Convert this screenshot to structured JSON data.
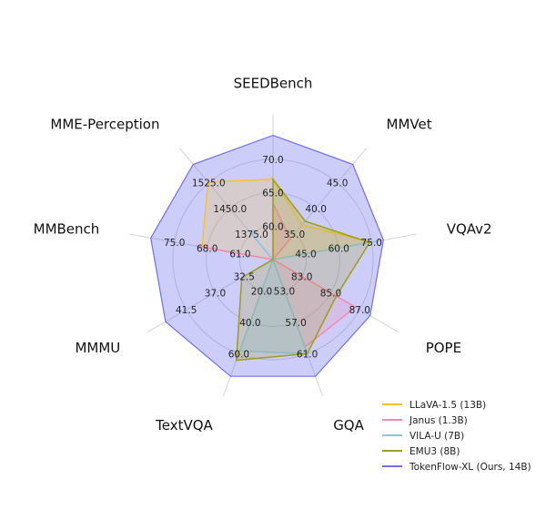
{
  "chart_data": {
    "type": "radar",
    "axes": [
      {
        "label": "SEEDBench",
        "ticks": [
          "60.0",
          "65.0",
          "70.0"
        ],
        "tick_r": [
          0.333,
          0.667,
          1.0
        ]
      },
      {
        "label": "MMVet",
        "ticks": [
          "35.0",
          "40.0",
          "45.0"
        ],
        "tick_r": [
          0.333,
          0.667,
          1.0
        ]
      },
      {
        "label": "VQAv2",
        "ticks": [
          "45.0",
          "60.0",
          "75.0"
        ],
        "tick_r": [
          0.333,
          0.667,
          1.0
        ]
      },
      {
        "label": "POPE",
        "ticks": [
          "83.0",
          "85.0",
          "87.0"
        ],
        "tick_r": [
          0.333,
          0.667,
          1.0
        ]
      },
      {
        "label": "GQA",
        "ticks": [
          "53.0",
          "57.0",
          "61.0"
        ],
        "tick_r": [
          0.333,
          0.667,
          1.0
        ]
      },
      {
        "label": "TextVQA",
        "ticks": [
          "20.0",
          "40.0",
          "60.0"
        ],
        "tick_r": [
          0.333,
          0.667,
          1.0
        ]
      },
      {
        "label": "MMMU",
        "ticks": [
          "32.5",
          "37.0",
          "41.5"
        ],
        "tick_r": [
          0.333,
          0.667,
          1.0
        ]
      },
      {
        "label": "MMBench",
        "ticks": [
          "61.0",
          "68.0",
          "75.0"
        ],
        "tick_r": [
          0.333,
          0.667,
          1.0
        ]
      },
      {
        "label": "MME-Perception",
        "ticks": [
          "1375.0",
          "1450.0",
          "1525.0"
        ],
        "tick_r": [
          0.333,
          0.667,
          1.0
        ]
      }
    ],
    "rlim": [
      0,
      1.24
    ],
    "series": [
      {
        "name": "TokenFlow-XL (Ours, 14B)",
        "color": "#7070ee",
        "values": [
          1.24,
          1.24,
          1.12,
          1.12,
          1.24,
          1.24,
          1.24,
          1.24,
          1.24
        ]
      },
      {
        "name": "LLaVA-1.5 (13B)",
        "color": "#f4c430",
        "values": [
          0.8,
          0.45,
          1.0,
          0.0,
          0.0,
          1.0,
          0.0,
          0.72,
          1.01
        ]
      },
      {
        "name": "Janus (1.3B)",
        "color": "#f08cb0",
        "values": [
          0.56,
          0.27,
          0.0,
          0.95,
          0.93,
          0.0,
          0.0,
          0.78,
          0.0
        ]
      },
      {
        "name": "VILA-U (7B)",
        "color": "#86c5e8",
        "values": [
          0.0,
          0.0,
          1.05,
          0.0,
          1.0,
          0.97,
          0.0,
          0.0,
          0.4
        ]
      },
      {
        "name": "EMU3 (8B)",
        "color": "#a0a020",
        "values": [
          0.8,
          0.5,
          0.98,
          0.73,
          1.0,
          1.07,
          0.36,
          0.0,
          0.0
        ]
      }
    ],
    "legend": {
      "position": "bottom-right",
      "items": [
        "LLaVA-1.5 (13B)",
        "Janus (1.3B)",
        "VILA-U (7B)",
        "EMU3 (8B)",
        "TokenFlow-XL (Ours, 14B)"
      ]
    },
    "grid": true
  }
}
